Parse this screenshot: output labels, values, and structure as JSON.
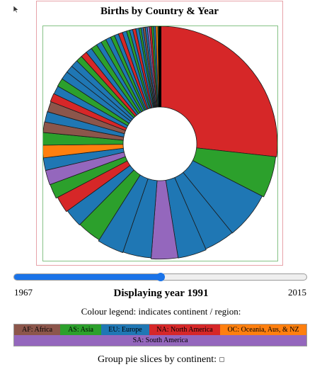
{
  "chart": {
    "title": "Births by Country & Year"
  },
  "chart_data": {
    "type": "pie",
    "title": "Births by Country & Year",
    "note_style": "variable-radius donut; colour indicates continent",
    "continent_colors": {
      "AF": "#8c564b",
      "AS": "#2ca02c",
      "EU": "#1f77b4",
      "NA": "#d62728",
      "OC": "#ff7f0e",
      "SA": "#9467bd"
    },
    "slices": [
      {
        "continent": "NA",
        "angle": 93,
        "reach": 1.0
      },
      {
        "continent": "AS",
        "angle": 20,
        "reach": 0.97
      },
      {
        "continent": "EU",
        "angle": 23,
        "reach": 0.92
      },
      {
        "continent": "EU",
        "angle": 15,
        "reach": 0.91
      },
      {
        "continent": "EU",
        "angle": 14,
        "reach": 0.94
      },
      {
        "continent": "SA",
        "angle": 13,
        "reach": 0.93
      },
      {
        "continent": "EU",
        "angle": 14,
        "reach": 0.9
      },
      {
        "continent": "EU",
        "angle": 13,
        "reach": 0.92
      },
      {
        "continent": "AS",
        "angle": 12,
        "reach": 0.88
      },
      {
        "continent": "EU",
        "angle": 9,
        "reach": 0.9
      },
      {
        "continent": "NA",
        "angle": 8,
        "reach": 0.94
      },
      {
        "continent": "AS",
        "angle": 7,
        "reach": 0.99
      },
      {
        "continent": "SA",
        "angle": 7,
        "reach": 1.0
      },
      {
        "continent": "EU",
        "angle": 6,
        "reach": 1.0
      },
      {
        "continent": "OC",
        "angle": 6,
        "reach": 1.0
      },
      {
        "continent": "AS",
        "angle": 6,
        "reach": 1.0
      },
      {
        "continent": "AF",
        "angle": 5,
        "reach": 1.0
      },
      {
        "continent": "EU",
        "angle": 5,
        "reach": 0.99
      },
      {
        "continent": "AF",
        "angle": 5,
        "reach": 0.98
      },
      {
        "continent": "NA",
        "angle": 4,
        "reach": 1.0
      },
      {
        "continent": "EU",
        "angle": 4,
        "reach": 0.99
      },
      {
        "continent": "AS",
        "angle": 4,
        "reach": 1.0
      },
      {
        "continent": "EU",
        "angle": 4,
        "reach": 1.0
      },
      {
        "continent": "EU",
        "angle": 3.5,
        "reach": 1.0
      },
      {
        "continent": "EU",
        "angle": 3.5,
        "reach": 1.0
      },
      {
        "continent": "AS",
        "angle": 3,
        "reach": 1.0
      },
      {
        "continent": "NA",
        "angle": 3,
        "reach": 1.0
      },
      {
        "continent": "EU",
        "angle": 3,
        "reach": 1.0
      },
      {
        "continent": "AS",
        "angle": 3,
        "reach": 1.0
      },
      {
        "continent": "EU",
        "angle": 2.5,
        "reach": 1.0
      },
      {
        "continent": "AS",
        "angle": 2.5,
        "reach": 1.0
      },
      {
        "continent": "EU",
        "angle": 2.5,
        "reach": 1.0
      },
      {
        "continent": "AS",
        "angle": 2,
        "reach": 1.0
      },
      {
        "continent": "EU",
        "angle": 2,
        "reach": 1.0
      },
      {
        "continent": "NA",
        "angle": 2,
        "reach": 1.0
      },
      {
        "continent": "EU",
        "angle": 2,
        "reach": 1.0
      },
      {
        "continent": "AS",
        "angle": 1.5,
        "reach": 1.0
      },
      {
        "continent": "EU",
        "angle": 1.5,
        "reach": 1.0
      },
      {
        "continent": "NA",
        "angle": 1.5,
        "reach": 1.0
      },
      {
        "continent": "EU",
        "angle": 1.5,
        "reach": 1.0
      },
      {
        "continent": "AS",
        "angle": 1,
        "reach": 1.0
      },
      {
        "continent": "EU",
        "angle": 1,
        "reach": 1.0
      },
      {
        "continent": "AF",
        "angle": 1,
        "reach": 1.0
      },
      {
        "continent": "EU",
        "angle": 1,
        "reach": 1.0
      },
      {
        "continent": "SA",
        "angle": 1,
        "reach": 1.0
      },
      {
        "continent": "NA",
        "angle": 1,
        "reach": 1.0
      },
      {
        "continent": "AS",
        "angle": 1,
        "reach": 1.0
      },
      {
        "continent": "EU",
        "angle": 1,
        "reach": 1.0
      },
      {
        "continent": "OC",
        "angle": 1,
        "reach": 1.0
      },
      {
        "continent": "AS",
        "angle": 1,
        "reach": 1.0
      }
    ]
  },
  "slider": {
    "min_label": "1967",
    "max_label": "2015",
    "min": 1967,
    "max": 2015,
    "value": 1991,
    "fill_color": "#1a73e8"
  },
  "year_display": "Displaying year 1991",
  "legend": {
    "title": "Colour legend: indicates continent / region:",
    "items": [
      {
        "label": "AF: Africa",
        "color": "#8c564b"
      },
      {
        "label": "AS: Asia",
        "color": "#2ca02c"
      },
      {
        "label": "EU: Europe",
        "color": "#1f77b4"
      },
      {
        "label": "NA: North America",
        "color": "#d62728"
      },
      {
        "label": "OC: Oceania, Aus, & NZ",
        "color": "#ff7f0e"
      },
      {
        "label": "SA: South America",
        "color": "#9467bd"
      }
    ]
  },
  "group": {
    "label": "Group pie slices by continent:",
    "checked": false
  }
}
